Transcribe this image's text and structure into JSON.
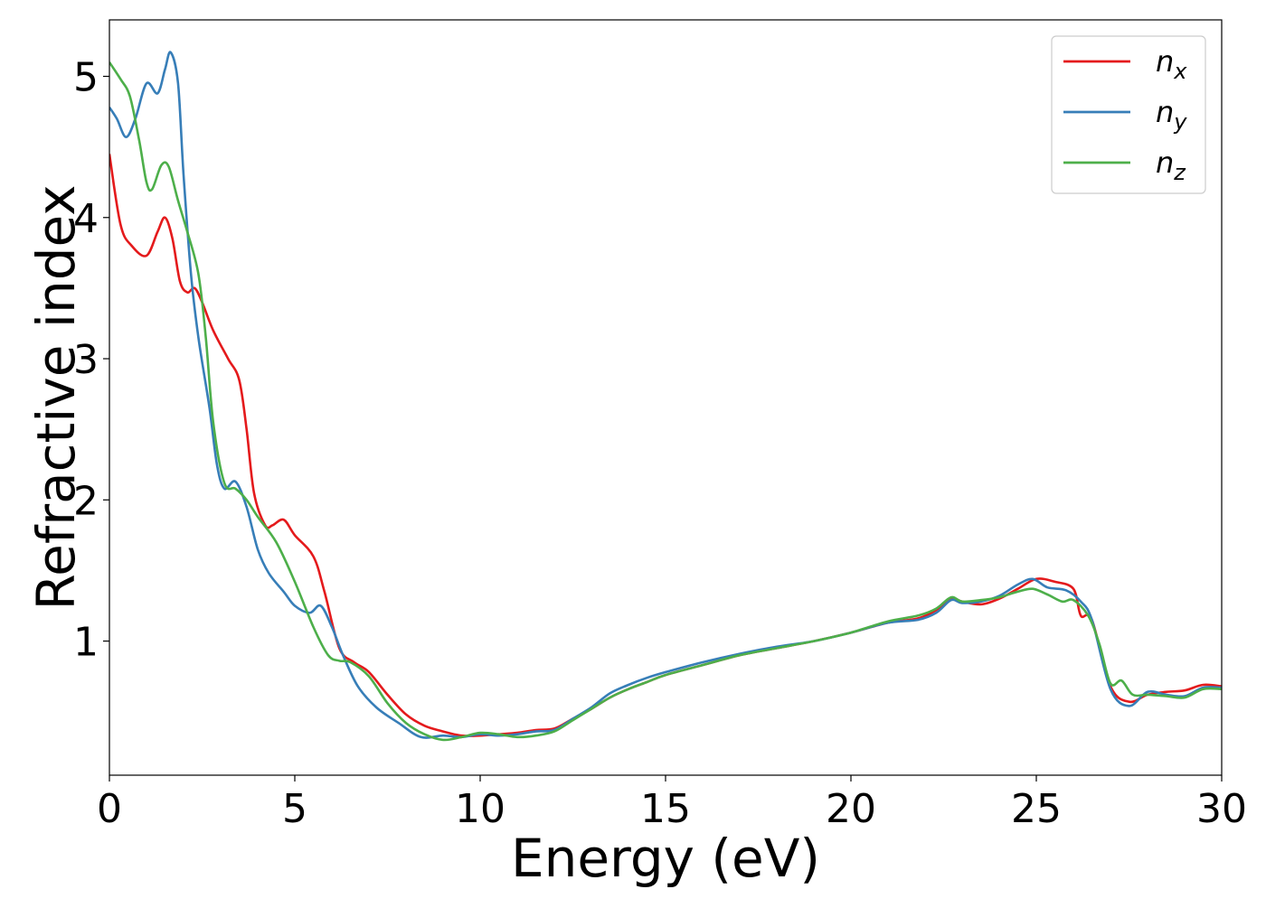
{
  "chart_data": {
    "type": "line",
    "title": "",
    "xlabel": "Energy (eV)",
    "ylabel": "Refractive index",
    "xlim": [
      0,
      30
    ],
    "ylim": [
      0.05,
      5.4
    ],
    "xticks": [
      0,
      5,
      10,
      15,
      20,
      25,
      30
    ],
    "yticks": [
      1,
      2,
      3,
      4,
      5
    ],
    "grid": false,
    "legend_position": "top-right",
    "series": [
      {
        "name": "n_x",
        "name_base": "n",
        "name_sub": "x",
        "color": "#e41a1c",
        "points": [
          [
            0,
            4.45
          ],
          [
            0.3,
            3.95
          ],
          [
            0.6,
            3.8
          ],
          [
            1.0,
            3.73
          ],
          [
            1.3,
            3.9
          ],
          [
            1.5,
            4.0
          ],
          [
            1.7,
            3.85
          ],
          [
            1.9,
            3.55
          ],
          [
            2.1,
            3.47
          ],
          [
            2.3,
            3.5
          ],
          [
            2.5,
            3.4
          ],
          [
            2.8,
            3.2
          ],
          [
            3.2,
            3.0
          ],
          [
            3.5,
            2.85
          ],
          [
            3.7,
            2.5
          ],
          [
            3.9,
            2.05
          ],
          [
            4.2,
            1.82
          ],
          [
            4.4,
            1.82
          ],
          [
            4.7,
            1.86
          ],
          [
            5.0,
            1.75
          ],
          [
            5.5,
            1.6
          ],
          [
            5.8,
            1.35
          ],
          [
            6.2,
            0.95
          ],
          [
            6.6,
            0.85
          ],
          [
            7.0,
            0.78
          ],
          [
            7.5,
            0.62
          ],
          [
            8.0,
            0.48
          ],
          [
            8.5,
            0.4
          ],
          [
            9.0,
            0.36
          ],
          [
            9.5,
            0.33
          ],
          [
            10.0,
            0.33
          ],
          [
            10.5,
            0.34
          ],
          [
            11.0,
            0.35
          ],
          [
            11.5,
            0.37
          ],
          [
            12.0,
            0.38
          ],
          [
            12.5,
            0.45
          ],
          [
            13.0,
            0.52
          ],
          [
            13.5,
            0.6
          ],
          [
            14.0,
            0.66
          ],
          [
            14.5,
            0.71
          ],
          [
            15.0,
            0.76
          ],
          [
            16.0,
            0.83
          ],
          [
            17.0,
            0.9
          ],
          [
            18.0,
            0.95
          ],
          [
            19.0,
            1.0
          ],
          [
            20.0,
            1.06
          ],
          [
            21.0,
            1.13
          ],
          [
            21.8,
            1.16
          ],
          [
            22.3,
            1.22
          ],
          [
            22.7,
            1.3
          ],
          [
            23.0,
            1.28
          ],
          [
            23.5,
            1.26
          ],
          [
            24.0,
            1.3
          ],
          [
            24.5,
            1.37
          ],
          [
            25.0,
            1.44
          ],
          [
            25.5,
            1.42
          ],
          [
            26.0,
            1.37
          ],
          [
            26.2,
            1.18
          ],
          [
            26.5,
            1.15
          ],
          [
            27.0,
            0.68
          ],
          [
            27.5,
            0.57
          ],
          [
            28.0,
            0.62
          ],
          [
            28.5,
            0.64
          ],
          [
            29.0,
            0.65
          ],
          [
            29.5,
            0.69
          ],
          [
            30.0,
            0.68
          ]
        ]
      },
      {
        "name": "n_y",
        "name_base": "n",
        "name_sub": "y",
        "color": "#377eb8",
        "points": [
          [
            0,
            4.78
          ],
          [
            0.2,
            4.7
          ],
          [
            0.45,
            4.57
          ],
          [
            0.7,
            4.7
          ],
          [
            1.0,
            4.95
          ],
          [
            1.3,
            4.88
          ],
          [
            1.5,
            5.05
          ],
          [
            1.65,
            5.17
          ],
          [
            1.85,
            4.95
          ],
          [
            2.0,
            4.3
          ],
          [
            2.2,
            3.6
          ],
          [
            2.4,
            3.15
          ],
          [
            2.7,
            2.65
          ],
          [
            2.9,
            2.25
          ],
          [
            3.1,
            2.08
          ],
          [
            3.4,
            2.13
          ],
          [
            3.7,
            1.95
          ],
          [
            4.0,
            1.65
          ],
          [
            4.3,
            1.48
          ],
          [
            4.7,
            1.35
          ],
          [
            5.0,
            1.25
          ],
          [
            5.4,
            1.2
          ],
          [
            5.7,
            1.25
          ],
          [
            6.0,
            1.1
          ],
          [
            6.3,
            0.9
          ],
          [
            6.7,
            0.68
          ],
          [
            7.2,
            0.53
          ],
          [
            7.8,
            0.42
          ],
          [
            8.4,
            0.32
          ],
          [
            9.0,
            0.33
          ],
          [
            9.5,
            0.32
          ],
          [
            10.0,
            0.34
          ],
          [
            10.5,
            0.33
          ],
          [
            11.0,
            0.34
          ],
          [
            11.5,
            0.36
          ],
          [
            12.0,
            0.37
          ],
          [
            12.5,
            0.45
          ],
          [
            13.0,
            0.53
          ],
          [
            13.5,
            0.63
          ],
          [
            14.0,
            0.69
          ],
          [
            14.5,
            0.74
          ],
          [
            15.0,
            0.78
          ],
          [
            16.0,
            0.85
          ],
          [
            17.0,
            0.91
          ],
          [
            18.0,
            0.96
          ],
          [
            19.0,
            1.0
          ],
          [
            20.0,
            1.06
          ],
          [
            21.0,
            1.13
          ],
          [
            21.8,
            1.15
          ],
          [
            22.3,
            1.2
          ],
          [
            22.7,
            1.29
          ],
          [
            23.0,
            1.27
          ],
          [
            23.5,
            1.28
          ],
          [
            24.0,
            1.32
          ],
          [
            24.5,
            1.4
          ],
          [
            24.9,
            1.44
          ],
          [
            25.3,
            1.38
          ],
          [
            25.8,
            1.36
          ],
          [
            26.2,
            1.28
          ],
          [
            26.5,
            1.15
          ],
          [
            27.0,
            0.66
          ],
          [
            27.5,
            0.54
          ],
          [
            28.0,
            0.64
          ],
          [
            28.5,
            0.62
          ],
          [
            29.0,
            0.61
          ],
          [
            29.5,
            0.67
          ],
          [
            30.0,
            0.67
          ]
        ]
      },
      {
        "name": "n_z",
        "name_base": "n",
        "name_sub": "z",
        "color": "#4daf4a",
        "points": [
          [
            0,
            5.1
          ],
          [
            0.3,
            4.98
          ],
          [
            0.55,
            4.86
          ],
          [
            0.8,
            4.55
          ],
          [
            1.0,
            4.25
          ],
          [
            1.15,
            4.2
          ],
          [
            1.4,
            4.37
          ],
          [
            1.6,
            4.36
          ],
          [
            1.85,
            4.12
          ],
          [
            2.1,
            3.9
          ],
          [
            2.4,
            3.6
          ],
          [
            2.6,
            3.15
          ],
          [
            2.8,
            2.55
          ],
          [
            3.1,
            2.12
          ],
          [
            3.4,
            2.08
          ],
          [
            3.7,
            2.0
          ],
          [
            4.0,
            1.88
          ],
          [
            4.5,
            1.7
          ],
          [
            5.0,
            1.42
          ],
          [
            5.5,
            1.1
          ],
          [
            5.9,
            0.9
          ],
          [
            6.2,
            0.86
          ],
          [
            6.5,
            0.85
          ],
          [
            7.0,
            0.75
          ],
          [
            7.5,
            0.56
          ],
          [
            8.0,
            0.42
          ],
          [
            8.5,
            0.34
          ],
          [
            9.0,
            0.3
          ],
          [
            9.5,
            0.32
          ],
          [
            10.0,
            0.35
          ],
          [
            10.5,
            0.34
          ],
          [
            11.0,
            0.32
          ],
          [
            11.5,
            0.33
          ],
          [
            12.0,
            0.36
          ],
          [
            12.5,
            0.44
          ],
          [
            13.0,
            0.52
          ],
          [
            13.5,
            0.6
          ],
          [
            14.0,
            0.66
          ],
          [
            14.5,
            0.71
          ],
          [
            15.0,
            0.76
          ],
          [
            16.0,
            0.83
          ],
          [
            17.0,
            0.9
          ],
          [
            18.0,
            0.95
          ],
          [
            19.0,
            1.0
          ],
          [
            20.0,
            1.06
          ],
          [
            21.0,
            1.14
          ],
          [
            21.8,
            1.18
          ],
          [
            22.3,
            1.23
          ],
          [
            22.7,
            1.31
          ],
          [
            23.0,
            1.28
          ],
          [
            23.5,
            1.29
          ],
          [
            24.0,
            1.31
          ],
          [
            24.5,
            1.35
          ],
          [
            24.9,
            1.37
          ],
          [
            25.3,
            1.33
          ],
          [
            25.7,
            1.28
          ],
          [
            26.0,
            1.29
          ],
          [
            26.4,
            1.18
          ],
          [
            26.7,
            0.98
          ],
          [
            27.0,
            0.7
          ],
          [
            27.3,
            0.72
          ],
          [
            27.6,
            0.62
          ],
          [
            28.0,
            0.62
          ],
          [
            28.5,
            0.61
          ],
          [
            29.0,
            0.6
          ],
          [
            29.5,
            0.66
          ],
          [
            30.0,
            0.66
          ]
        ]
      }
    ]
  }
}
